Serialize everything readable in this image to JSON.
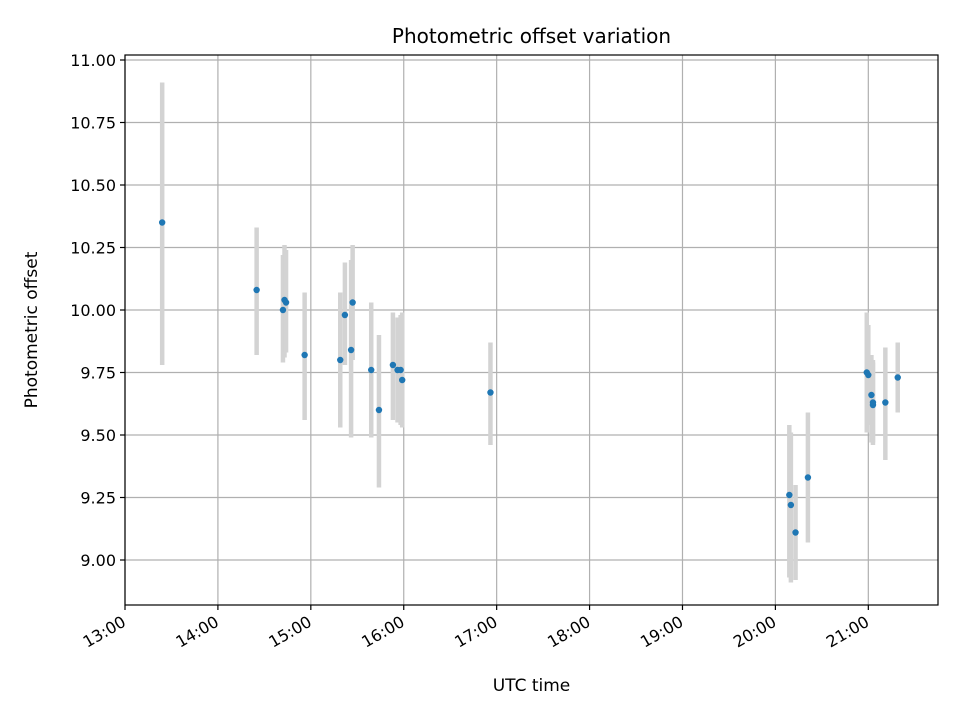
{
  "chart_data": {
    "type": "scatter",
    "title": "Photometric offset variation",
    "xlabel": "UTC time",
    "ylabel": "Photometric offset",
    "x_ticks": [
      "13:00",
      "14:00",
      "15:00",
      "16:00",
      "17:00",
      "18:00",
      "19:00",
      "20:00",
      "21:00"
    ],
    "y_ticks": [
      "9.00",
      "9.25",
      "9.50",
      "9.75",
      "10.00",
      "10.25",
      "10.50",
      "10.75",
      "11.00"
    ],
    "xlim": [
      "13:00",
      "21:45"
    ],
    "ylim": [
      8.82,
      11.02
    ],
    "grid": true,
    "colors": {
      "point": "#1f77b4",
      "errorbar": "#d3d3d3",
      "grid": "#b0b0b0"
    },
    "points": [
      {
        "x": "13:24",
        "y": 10.35,
        "ylow": 9.78,
        "yhigh": 10.91
      },
      {
        "x": "14:25",
        "y": 10.08,
        "ylow": 9.82,
        "yhigh": 10.33
      },
      {
        "x": "14:42",
        "y": 10.0,
        "ylow": 9.79,
        "yhigh": 10.22
      },
      {
        "x": "14:43",
        "y": 10.04,
        "ylow": 9.81,
        "yhigh": 10.26
      },
      {
        "x": "14:44",
        "y": 10.03,
        "ylow": 9.83,
        "yhigh": 10.24
      },
      {
        "x": "14:56",
        "y": 9.82,
        "ylow": 9.56,
        "yhigh": 10.07
      },
      {
        "x": "15:19",
        "y": 9.8,
        "ylow": 9.53,
        "yhigh": 10.07
      },
      {
        "x": "15:22",
        "y": 9.98,
        "ylow": 9.78,
        "yhigh": 10.19
      },
      {
        "x": "15:26",
        "y": 9.84,
        "ylow": 9.49,
        "yhigh": 10.2
      },
      {
        "x": "15:27",
        "y": 10.03,
        "ylow": 9.8,
        "yhigh": 10.26
      },
      {
        "x": "15:39",
        "y": 9.76,
        "ylow": 9.49,
        "yhigh": 10.03
      },
      {
        "x": "15:44",
        "y": 9.6,
        "ylow": 9.29,
        "yhigh": 9.9
      },
      {
        "x": "15:53",
        "y": 9.78,
        "ylow": 9.56,
        "yhigh": 9.99
      },
      {
        "x": "15:56",
        "y": 9.76,
        "ylow": 9.55,
        "yhigh": 9.97
      },
      {
        "x": "15:58",
        "y": 9.76,
        "ylow": 9.54,
        "yhigh": 9.98
      },
      {
        "x": "15:59",
        "y": 9.72,
        "ylow": 9.53,
        "yhigh": 9.99
      },
      {
        "x": "16:56",
        "y": 9.67,
        "ylow": 9.46,
        "yhigh": 9.87
      },
      {
        "x": "20:09",
        "y": 9.26,
        "ylow": 8.93,
        "yhigh": 9.54
      },
      {
        "x": "20:10",
        "y": 9.22,
        "ylow": 8.91,
        "yhigh": 9.51
      },
      {
        "x": "20:13",
        "y": 9.11,
        "ylow": 8.92,
        "yhigh": 9.3
      },
      {
        "x": "20:21",
        "y": 9.33,
        "ylow": 9.07,
        "yhigh": 9.59
      },
      {
        "x": "20:59",
        "y": 9.75,
        "ylow": 9.51,
        "yhigh": 9.99
      },
      {
        "x": "21:00",
        "y": 9.74,
        "ylow": 9.54,
        "yhigh": 9.94
      },
      {
        "x": "21:02",
        "y": 9.66,
        "ylow": 9.47,
        "yhigh": 9.82
      },
      {
        "x": "21:03",
        "y": 9.62,
        "ylow": 9.46,
        "yhigh": 9.8
      },
      {
        "x": "21:03",
        "y": 9.63,
        "ylow": 9.47,
        "yhigh": 9.79
      },
      {
        "x": "21:11",
        "y": 9.63,
        "ylow": 9.4,
        "yhigh": 9.85
      },
      {
        "x": "21:19",
        "y": 9.73,
        "ylow": 9.59,
        "yhigh": 9.87
      }
    ]
  }
}
